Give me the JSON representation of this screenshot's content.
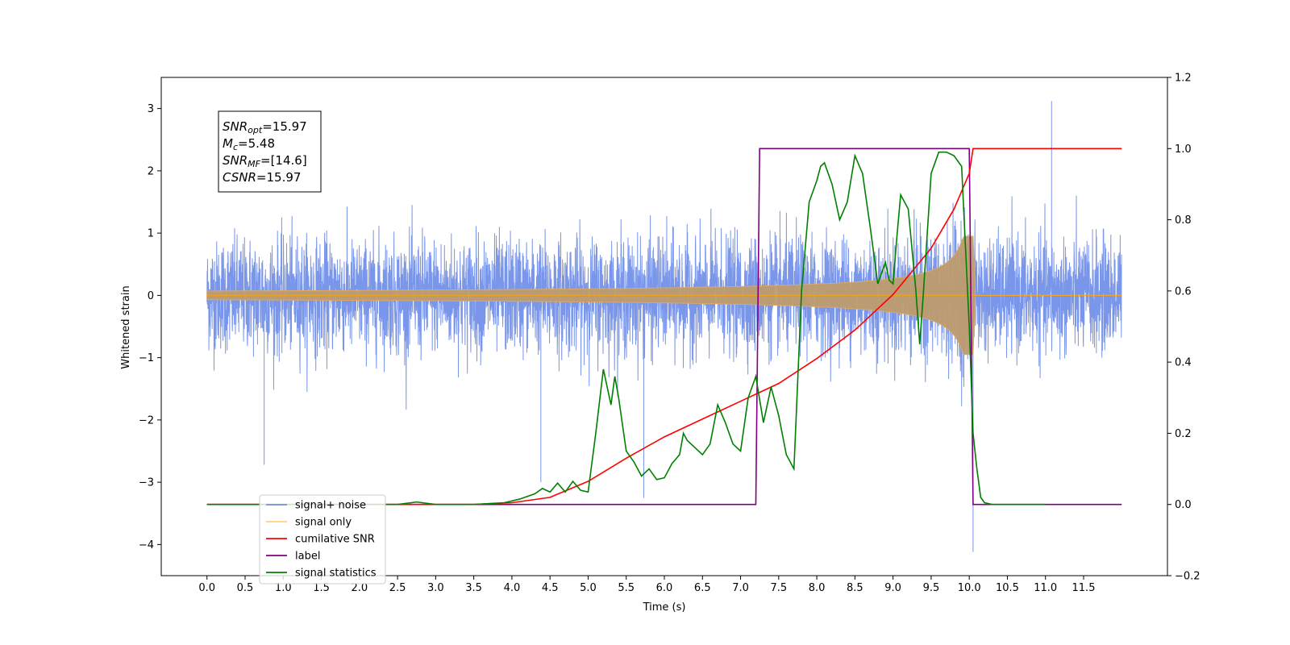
{
  "chart_data": {
    "type": "line",
    "title": "",
    "xlabel": "Time (s)",
    "ylabel": "Whitened strain",
    "y2label": "",
    "xlim": [
      -0.6,
      12.6
    ],
    "ylim": [
      -4.5,
      3.5
    ],
    "y2lim": [
      -0.2,
      1.2
    ],
    "xticks": [
      0.0,
      0.5,
      1.0,
      1.5,
      2.0,
      2.5,
      3.0,
      3.5,
      4.0,
      4.5,
      5.0,
      5.5,
      6.0,
      6.5,
      7.0,
      7.5,
      8.0,
      8.5,
      9.0,
      9.5,
      10.0,
      10.5,
      11.0,
      11.5
    ],
    "xtick_labels": [
      "0.0",
      "0.5",
      "1.0",
      "1.5",
      "2.0",
      "2.5",
      "3.0",
      "3.5",
      "4.0",
      "4.5",
      "5.0",
      "5.5",
      "6.0",
      "6.5",
      "7.0",
      "7.5",
      "8.0",
      "8.5",
      "9.0",
      "9.5",
      "10.0",
      "10.5",
      "11.0",
      "11.5"
    ],
    "yticks": [
      -4,
      -3,
      -2,
      -1,
      0,
      1,
      2,
      3
    ],
    "ytick_labels": [
      "−4",
      "−3",
      "−2",
      "−1",
      "0",
      "1",
      "2",
      "3"
    ],
    "y2ticks": [
      -0.2,
      0.0,
      0.2,
      0.4,
      0.6,
      0.8,
      1.0,
      1.2
    ],
    "y2tick_labels": [
      "−0.2",
      "0.0",
      "0.2",
      "0.4",
      "0.6",
      "0.8",
      "1.0",
      "1.2"
    ],
    "grid": false,
    "legend_position": "lower-left",
    "annotation": {
      "lines": [
        {
          "sym": "SNR",
          "sub": "opt",
          "rest": "=15.97"
        },
        {
          "sym": "M",
          "sub": "c",
          "rest": "=5.48"
        },
        {
          "sym": "SNR",
          "sub": "MF",
          "rest": "=[14.6]"
        },
        {
          "sym": "CSNR",
          "sub": "",
          "rest": "=15.97"
        }
      ]
    },
    "series": [
      {
        "name": "signal+ noise",
        "axis": "left",
        "color": "#4169E1",
        "opacity": 0.7,
        "description_range": [
          0.0,
          12.0
        ],
        "noise": {
          "amp": 0.72,
          "max_abs_seen": [
            3.12,
            -4.12
          ]
        },
        "notable_spikes": [
          [
            11.08,
            3.12
          ],
          [
            10.05,
            -4.12
          ],
          [
            5.73,
            -3.25
          ],
          [
            4.38,
            -3.0
          ],
          [
            0.75,
            -2.72
          ]
        ]
      },
      {
        "name": "signal only",
        "axis": "left",
        "color": "#FFA500",
        "opacity": 0.5,
        "chirp": {
          "t_start": 0.0,
          "t_merge": 10.05,
          "end_amp": 0.95
        }
      },
      {
        "name": "cumilative SNR",
        "axis": "right",
        "color": "#FF0000",
        "x": [
          0.0,
          3.5,
          4.0,
          4.5,
          5.0,
          5.5,
          6.0,
          6.5,
          7.0,
          7.5,
          8.0,
          8.5,
          9.0,
          9.5,
          9.8,
          10.0,
          10.05,
          12.0
        ],
        "y": [
          0.0,
          0.0,
          0.005,
          0.02,
          0.065,
          0.13,
          0.19,
          0.24,
          0.29,
          0.34,
          0.41,
          0.49,
          0.59,
          0.72,
          0.83,
          0.93,
          1.0,
          1.0
        ]
      },
      {
        "name": "label",
        "axis": "right",
        "color": "#800080",
        "x": [
          0.0,
          7.2,
          7.25,
          10.0,
          10.05,
          12.0
        ],
        "y": [
          0.0,
          0.0,
          1.0,
          1.0,
          0.0,
          0.0
        ]
      },
      {
        "name": "signal statistics",
        "axis": "right",
        "color": "#008000",
        "x": [
          0.0,
          2.5,
          2.75,
          3.0,
          3.5,
          3.9,
          4.1,
          4.3,
          4.4,
          4.5,
          4.6,
          4.7,
          4.8,
          4.9,
          5.0,
          5.1,
          5.2,
          5.3,
          5.35,
          5.4,
          5.5,
          5.6,
          5.7,
          5.8,
          5.9,
          6.0,
          6.1,
          6.2,
          6.25,
          6.3,
          6.4,
          6.5,
          6.6,
          6.7,
          6.8,
          6.9,
          7.0,
          7.1,
          7.2,
          7.3,
          7.4,
          7.5,
          7.6,
          7.7,
          7.8,
          7.9,
          8.0,
          8.05,
          8.1,
          8.2,
          8.3,
          8.4,
          8.5,
          8.6,
          8.7,
          8.8,
          8.9,
          8.95,
          9.0,
          9.05,
          9.1,
          9.2,
          9.3,
          9.35,
          9.4,
          9.5,
          9.6,
          9.7,
          9.8,
          9.9,
          10.0,
          10.05,
          10.1,
          10.15,
          10.2,
          10.3,
          11.0
        ],
        "y": [
          0.0,
          0.0,
          0.007,
          0.0,
          0.0,
          0.005,
          0.015,
          0.03,
          0.045,
          0.035,
          0.06,
          0.035,
          0.065,
          0.04,
          0.035,
          0.2,
          0.38,
          0.28,
          0.36,
          0.3,
          0.15,
          0.12,
          0.08,
          0.1,
          0.07,
          0.075,
          0.115,
          0.14,
          0.2,
          0.18,
          0.16,
          0.14,
          0.17,
          0.28,
          0.23,
          0.17,
          0.15,
          0.3,
          0.36,
          0.23,
          0.33,
          0.25,
          0.14,
          0.1,
          0.6,
          0.85,
          0.91,
          0.95,
          0.96,
          0.9,
          0.8,
          0.85,
          0.98,
          0.93,
          0.78,
          0.62,
          0.68,
          0.63,
          0.62,
          0.75,
          0.87,
          0.83,
          0.6,
          0.45,
          0.6,
          0.93,
          0.99,
          0.99,
          0.98,
          0.95,
          0.5,
          0.2,
          0.1,
          0.02,
          0.005,
          0.0,
          0.0
        ]
      }
    ]
  }
}
